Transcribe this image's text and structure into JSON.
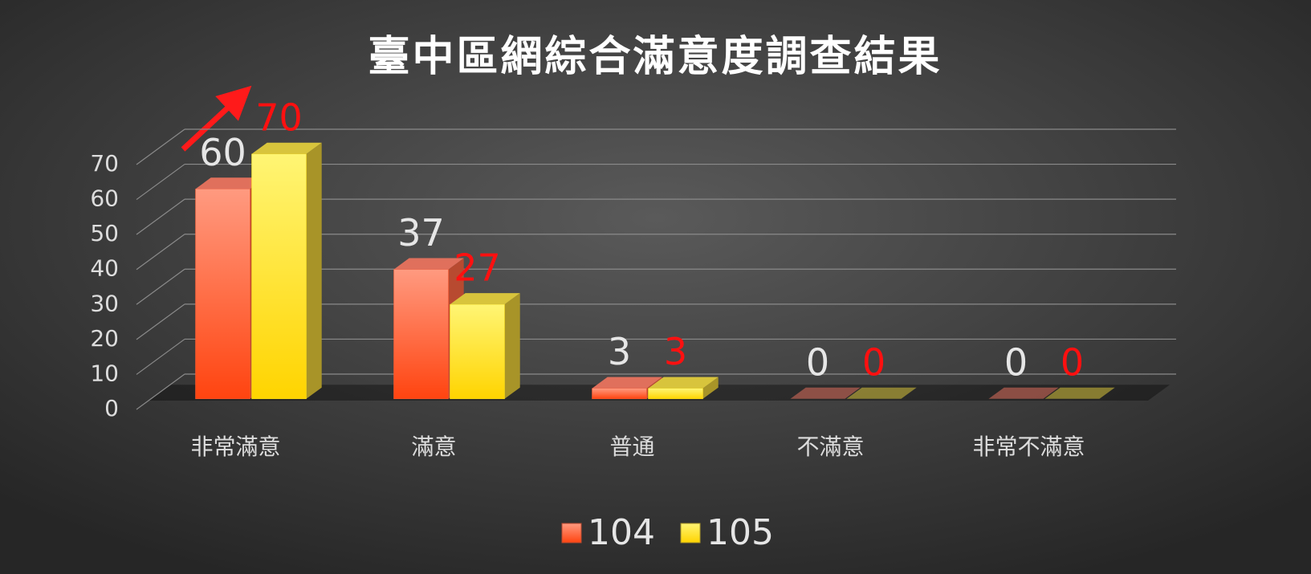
{
  "chart_data": {
    "type": "bar3d",
    "title": "臺中區網綜合滿意度調查結果",
    "categories": [
      "非常滿意",
      "滿意",
      "普通",
      "不滿意",
      "非常不滿意"
    ],
    "series": [
      {
        "name": "104",
        "color": "#ff5a30",
        "label_color": "#e6e6e6",
        "values": [
          60,
          37,
          3,
          0,
          0
        ]
      },
      {
        "name": "105",
        "color": "#ffe21a",
        "label_color": "#ff1010",
        "values": [
          70,
          27,
          3,
          0,
          0
        ]
      }
    ],
    "ylim": [
      0,
      70
    ],
    "yticks": [
      0,
      10,
      20,
      30,
      40,
      50,
      60,
      70
    ],
    "grid": true,
    "legend": "bottom"
  }
}
